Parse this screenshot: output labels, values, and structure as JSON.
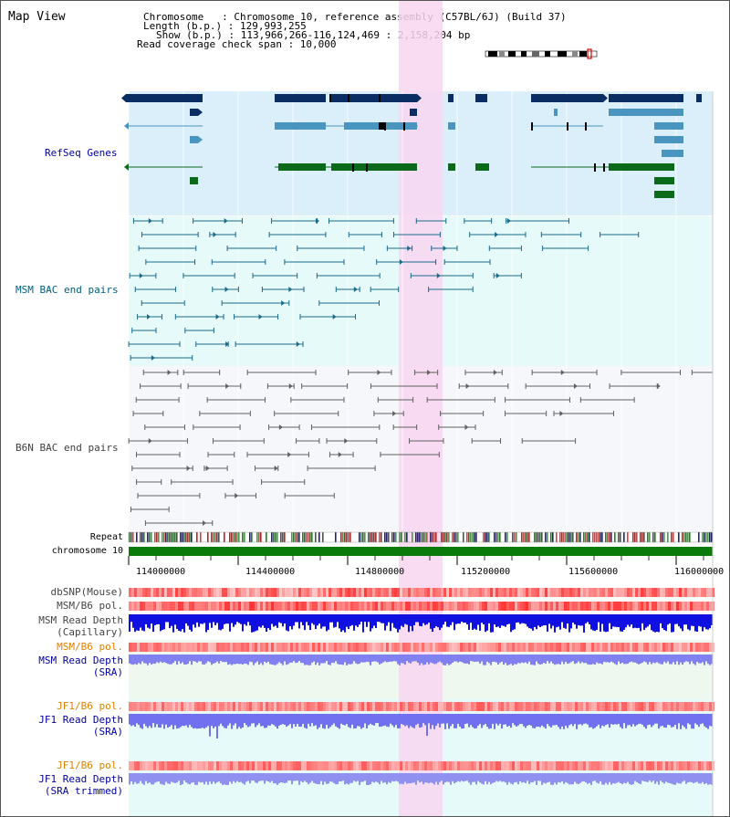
{
  "page": {
    "title": "Map View"
  },
  "header": {
    "chromosome_line": "Chromosome   : Chromosome 10, reference assembly (C57BL/6J) (Build 37)",
    "length_line": "Length (b.p.) : 129,993,255",
    "show_line": "Show (b.p.) : 113,966,266-116,124,469 : 2,158,204 bp",
    "coverage_line": "Read coverage check span : 10,000"
  },
  "tracks": {
    "refseq": "RefSeq Genes",
    "msm_bac": "MSM BAC end pairs",
    "b6n_bac": "B6N BAC end pairs",
    "repeat": "Repeat",
    "chromosome": "chromosome 10",
    "dbsnp": "dbSNP(Mouse)",
    "msm_b6_pol_1": "MSM/B6 pol.",
    "msm_depth_cap_1": "MSM Read Depth",
    "msm_depth_cap_2": "(Capillary)",
    "msm_b6_pol_2": "MSM/B6 pol.",
    "msm_depth_sra_1": "MSM Read Depth",
    "msm_depth_sra_2": "(SRA)",
    "jf1_pol_1": "JF1/B6 pol.",
    "jf1_depth_sra_1": "JF1 Read Depth",
    "jf1_depth_sra_2": "(SRA)",
    "jf1_pol_2": "JF1/B6 pol.",
    "jf1_depth_trim_1": "JF1 Read Depth",
    "jf1_depth_trim_2": "(SRA trimmed)"
  },
  "axis": {
    "ticks": [
      "114000000",
      "114400000",
      "114800000",
      "115200000",
      "115600000",
      "116000000"
    ]
  },
  "colors": {
    "refseq_bg": "#dbeffa",
    "msm_bg": "#e6fafa",
    "b6n_bg": "#f6f7fb",
    "highlight": "#f8d6f0",
    "gene_dark": "#0a2d63",
    "gene_mid": "#4a94c0",
    "gene_green": "#0a6a1a",
    "msm_line": "#1a6a8a",
    "b6n_line": "#606060",
    "label_blue": "#0000a0",
    "label_orange": "#e08000",
    "label_teal": "#006080"
  }
}
